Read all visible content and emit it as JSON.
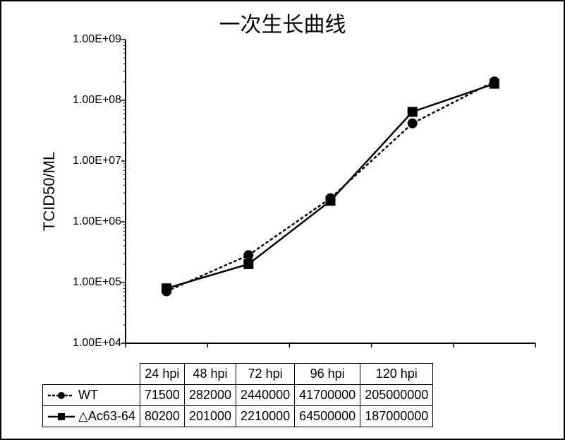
{
  "chart": {
    "type": "line",
    "title": "一次生长曲线",
    "title_fontsize": 30,
    "ylabel": "TCID50/ML",
    "ylabel_fontsize": 22,
    "x_categories": [
      "24 hpi",
      "48 hpi",
      "72 hpi",
      "96 hpi",
      "120 hpi"
    ],
    "series": [
      {
        "name": "WT",
        "legend_prefix": "",
        "marker": "circle",
        "marker_size": 7,
        "marker_fill": "#000000",
        "line_style": "dotted",
        "line_width": 2.5,
        "line_color": "#000000",
        "values": [
          71500,
          282000,
          2440000,
          41700000,
          205000000
        ]
      },
      {
        "name": "△Ac63-64",
        "legend_prefix": "",
        "marker": "square",
        "marker_size": 7,
        "marker_fill": "#000000",
        "line_style": "solid",
        "line_width": 2.5,
        "line_color": "#000000",
        "values": [
          80200,
          201000,
          2210000,
          64500000,
          187000000
        ]
      }
    ],
    "yaxis": {
      "scale": "log",
      "min": 10000.0,
      "max": 1000000000.0,
      "ticks": [
        10000.0,
        100000.0,
        1000000.0,
        10000000.0,
        100000000.0,
        1000000000.0
      ],
      "tick_labels": [
        "1.00E+04",
        "1.00E+05",
        "1.00E+06",
        "1.00E+07",
        "1.00E+08",
        "1.00E+09"
      ],
      "tick_fontsize": 16
    },
    "axis_color": "#000000",
    "axis_width": 2,
    "background_color": "#ffffff"
  }
}
